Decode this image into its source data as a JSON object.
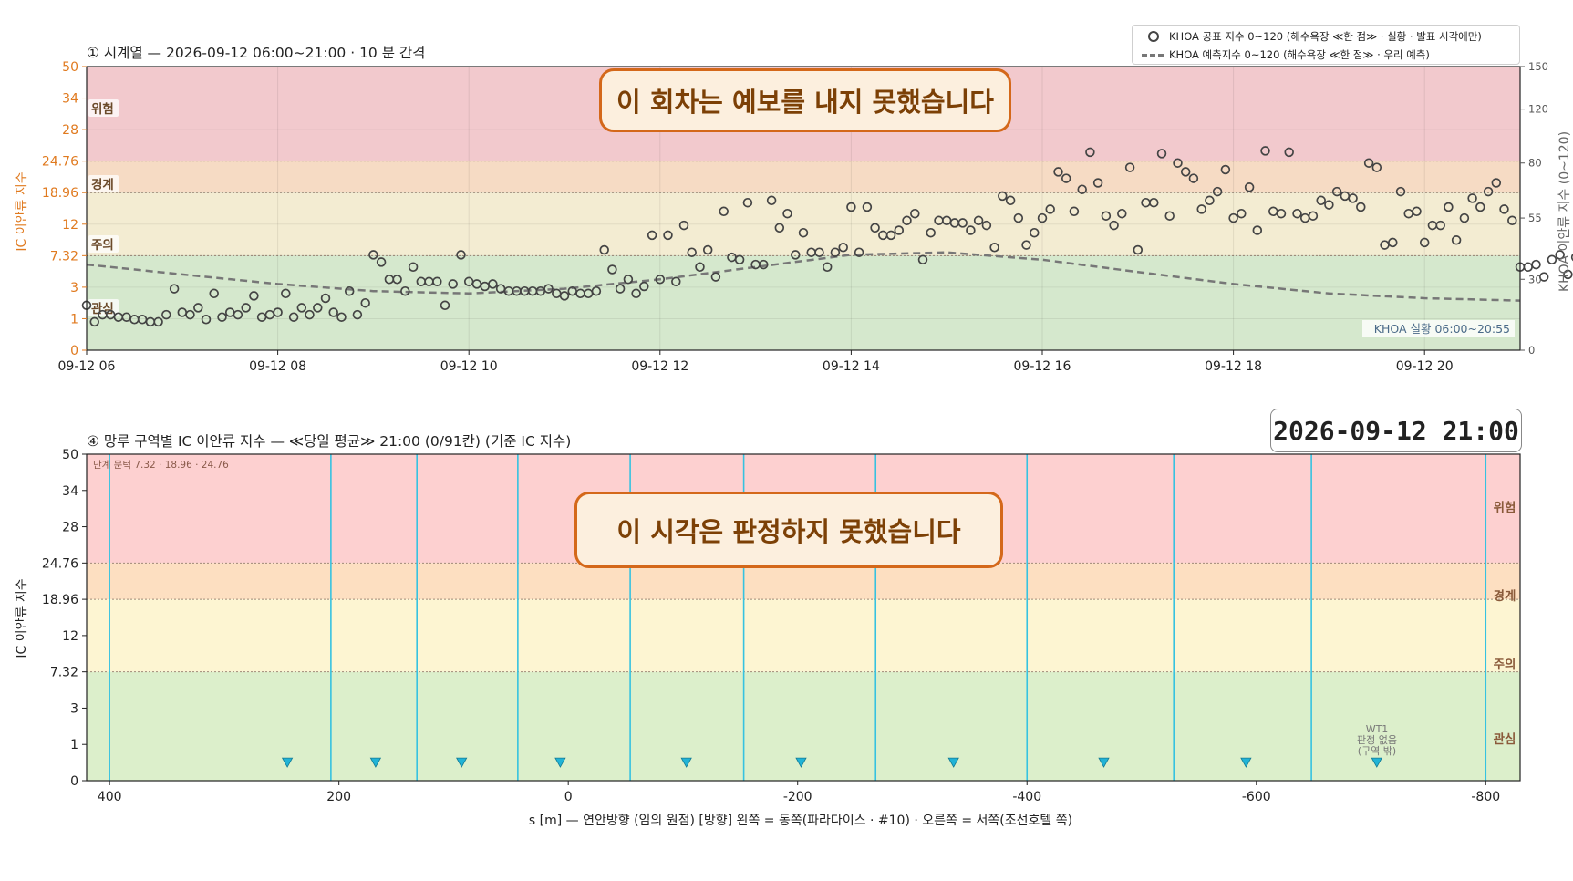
{
  "panel1": {
    "title": "① 시계열 — 2026-09-12 06:00~21:00 · 10 분 간격",
    "banner": "이 회차는 예보를 내지 못했습니다",
    "ylabel_left": "IC 이안류 지수",
    "ylabel_right": "KHOA 이안류 지수 (0~120)",
    "khoa_note": "KHOA 실황 06:00~20:55",
    "zones": [
      {
        "label": "위험",
        "from": 24.76,
        "to": 50,
        "color": "#f2c9cd"
      },
      {
        "label": "경계",
        "from": 18.96,
        "to": 24.76,
        "color": "#f6dbc4"
      },
      {
        "label": "주의",
        "from": 7.32,
        "to": 18.96,
        "color": "#f3ecd2"
      },
      {
        "label": "관심",
        "from": 0,
        "to": 7.32,
        "color": "#d5e8cd"
      }
    ]
  },
  "legend": {
    "item1": "KHOA 공표 지수 0~120 (해수욕장 ≪한 점≫ · 실황 · 발표 시각에만)",
    "item2": "KHOA 예측지수 0~120 (해수욕장 ≪한 점≫ · 우리 예측)"
  },
  "panel2": {
    "title": "④ 망루 구역별 IC 이안류 지수 — ≪당일 평균≫ 21:00  (0/91칸)   (기준 IC 지수)",
    "stamp": "2026-09-12  21:00",
    "banner": "이 시각은 판정하지 못했습니다",
    "ylabel": "IC 이안류 지수",
    "xlabel": "s [m] — 연안방향 (임의 원점)     [방향] 왼쪽 = 동쪽(파라다이스 · #10) · 오른쪽 = 서쪽(조선호텔 쪽)",
    "threshold_note": "단계 문턱 7.32 · 18.96 · 24.76",
    "wt_note": [
      "WT1",
      "판정 없음",
      "(구역 밖)"
    ],
    "zones": [
      {
        "label": "위험",
        "from": 24.76,
        "to": 50,
        "color": "#fdd0d0"
      },
      {
        "label": "경계",
        "from": 18.96,
        "to": 24.76,
        "color": "#fddfc1"
      },
      {
        "label": "주의",
        "from": 7.32,
        "to": 18.96,
        "color": "#fdf5d2"
      },
      {
        "label": "관심",
        "from": 0,
        "to": 7.32,
        "color": "#dcefcb"
      }
    ]
  },
  "chart_data": [
    {
      "type": "scatter",
      "title": "① 시계열 — 2026-09-12 06:00~21:00 · 10 분 간격",
      "xlabel": "",
      "ylabel": "IC 이안류 지수",
      "y2label": "KHOA 이안류 지수 (0~120)",
      "x_range": [
        "2026-09-12 06:00",
        "2026-09-12 21:00"
      ],
      "x_ticks": [
        "09-12 06",
        "09-12 08",
        "09-12 10",
        "09-12 12",
        "09-12 14",
        "09-12 16",
        "09-12 18",
        "09-12 20"
      ],
      "y_ticks": [
        "0",
        "1",
        "3",
        "7.32",
        "12",
        "18.96",
        "24.76",
        "28",
        "34",
        "50"
      ],
      "y2_ticks": [
        "0",
        "30",
        "55",
        "80",
        "120",
        "150"
      ],
      "y2lim": [
        0,
        150
      ],
      "grid": true,
      "legend": "top-right",
      "series": [
        {
          "name": "KHOA 공표 지수 0~120 (해수욕장 ≪한 점≫ · 실황 · 발표 시각에만)",
          "marker": "circle-open",
          "color": "#444444",
          "axis": "right",
          "start": "06:00",
          "step_minutes": 5,
          "values": [
            19,
            12,
            15,
            15,
            14,
            14,
            13,
            13,
            12,
            12,
            15,
            26,
            16,
            15,
            18,
            13,
            24,
            14,
            16,
            15,
            18,
            23,
            14,
            15,
            16,
            24,
            14,
            18,
            15,
            18,
            22,
            16,
            14,
            25,
            15,
            20,
            40,
            37,
            30,
            30,
            25,
            35,
            29,
            29,
            29,
            19,
            28,
            40,
            29,
            28,
            27,
            28,
            26,
            25,
            25,
            25,
            25,
            25,
            26,
            24,
            23,
            25,
            24,
            24,
            25,
            42,
            34,
            26,
            30,
            24,
            27,
            48,
            30,
            48,
            29,
            52,
            41,
            35,
            42,
            31,
            58,
            39,
            38,
            62,
            36,
            36,
            63,
            51,
            57,
            40,
            49,
            41,
            41,
            35,
            41,
            43,
            60,
            41,
            60,
            51,
            48,
            48,
            50,
            54,
            57,
            38,
            49,
            54,
            54,
            53,
            53,
            50,
            54,
            52,
            43,
            65,
            63,
            55,
            44,
            49,
            55,
            59,
            76,
            73,
            58,
            68,
            88,
            71,
            56,
            52,
            57,
            78,
            42,
            62,
            62,
            87,
            56,
            80,
            76,
            73,
            59,
            63,
            67,
            77,
            55,
            57,
            69,
            50,
            89,
            58,
            57,
            88,
            57,
            55,
            56,
            63,
            61,
            67,
            65,
            64,
            60,
            80,
            78,
            44,
            45,
            67,
            57,
            58,
            45,
            52,
            52,
            60,
            46,
            55,
            64,
            60,
            67,
            71,
            59,
            54,
            35,
            35,
            36,
            31,
            38,
            40,
            32,
            39,
            42,
            33,
            45,
            38,
            44,
            33,
            40,
            32,
            39,
            35,
            37,
            32,
            31,
            29,
            33,
            41,
            37,
            32,
            36,
            40,
            35,
            32,
            39,
            44,
            41,
            46,
            48,
            33,
            32,
            46,
            62,
            32,
            30,
            35,
            33,
            41,
            38,
            57,
            45,
            47,
            51,
            44,
            43,
            35,
            45,
            50,
            28,
            33,
            37,
            40,
            38,
            36,
            31,
            39,
            32,
            45,
            29,
            33,
            30
          ]
        },
        {
          "name": "KHOA 예측지수 0~120 (해수욕장 ≪한 점≫ · 우리 예측)",
          "type": "line",
          "style": "dashed",
          "color": "#777777",
          "axis": "right",
          "x": [
            "06:00",
            "07:00",
            "08:00",
            "09:00",
            "10:00",
            "11:00",
            "12:00",
            "13:00",
            "14:00",
            "15:00",
            "16:00",
            "17:00",
            "18:00",
            "19:00",
            "20:00",
            "21:00"
          ],
          "values": [
            36,
            32,
            28,
            25,
            24,
            26,
            30,
            35,
            40,
            41,
            38,
            33,
            28,
            24,
            22,
            21
          ]
        }
      ]
    },
    {
      "type": "scatter",
      "title": "④ 망루 구역별 IC 이안류 지수 — ≪당일 평균≫ 21:00  (0/91칸)   (기준 IC 지수)",
      "xlabel": "s [m] — 연안방향 (임의 원점)     [방향] 왼쪽 = 동쪽(파라다이스 · #10) · 오른쪽 = 서쪽(조선호텔 쪽)",
      "ylabel": "IC 이안류 지수",
      "xlim": [
        420,
        -830
      ],
      "x_reversed": true,
      "x_ticks": [
        "400",
        "200",
        "0",
        "-200",
        "-400",
        "-600",
        "-800"
      ],
      "y_ticks": [
        "0",
        "1",
        "3",
        "7.32",
        "12",
        "18.96",
        "24.76",
        "28",
        "34",
        "50"
      ],
      "zone_boundaries_x": [
        400,
        207,
        132,
        44,
        -54,
        -153,
        -268,
        -400,
        -528,
        -648,
        -800
      ],
      "markers": {
        "marker": "triangle-down",
        "color": "#21b3d6",
        "x": [
          245,
          168,
          93,
          7,
          -103,
          -203,
          -336,
          -467,
          -591,
          -705
        ],
        "y": 0.5
      }
    }
  ]
}
